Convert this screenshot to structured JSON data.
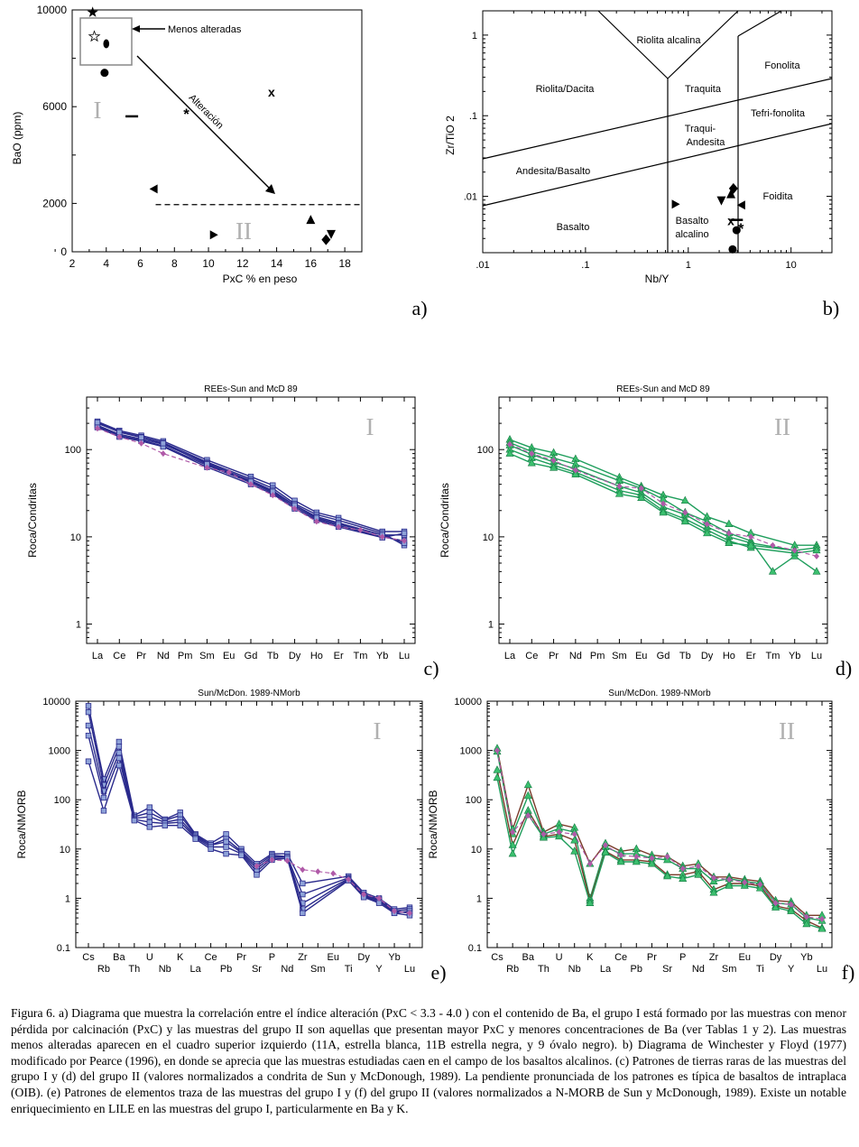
{
  "chart_data": [
    {
      "panel": "a)",
      "type": "scatter",
      "xlabel": "PxC % en peso",
      "ylabel": "BaO (ppm)",
      "xlim": [
        2,
        19
      ],
      "ylim": [
        0,
        10000
      ],
      "xticks": [
        "2",
        "4",
        "6",
        "8",
        "10",
        "12",
        "14",
        "16",
        "18"
      ],
      "yticks": [
        "0",
        "2000",
        "6000",
        "10000"
      ],
      "roman_group_I": "I",
      "roman_group_II": "II",
      "annotations": {
        "less_altered": "Menos alteradas",
        "alteration": "Alteración"
      },
      "threshold_y": 1950,
      "points": [
        {
          "x": 3.2,
          "y": 9900,
          "marker": "star"
        },
        {
          "x": 3.3,
          "y": 8900,
          "marker": "open-star"
        },
        {
          "x": 4.0,
          "y": 8600,
          "marker": "oval"
        },
        {
          "x": 3.9,
          "y": 7400,
          "marker": "circle"
        },
        {
          "x": 5.5,
          "y": 5600,
          "marker": "dash"
        },
        {
          "x": 8.7,
          "y": 5700,
          "marker": "asterisk"
        },
        {
          "x": 13.7,
          "y": 6600,
          "marker": "x"
        },
        {
          "x": 6.8,
          "y": 2600,
          "marker": "tri-left"
        },
        {
          "x": 10.3,
          "y": 700,
          "marker": "tri-right"
        },
        {
          "x": 16.0,
          "y": 1300,
          "marker": "tri-up"
        },
        {
          "x": 16.9,
          "y": 500,
          "marker": "diamond"
        },
        {
          "x": 17.2,
          "y": 750,
          "marker": "tri-down"
        }
      ]
    },
    {
      "panel": "b)",
      "type": "scatter",
      "xlabel": "Nb/Y",
      "ylabel": "Zr/TiO 2",
      "xlim": [
        0.01,
        25
      ],
      "ylim": [
        0.002,
        2
      ],
      "xticks": [
        ".01",
        ".1",
        "1",
        "10"
      ],
      "yticks": [
        ".01",
        ".1",
        "1"
      ],
      "fields": [
        "Riolita alcalina",
        "Riolita/Dacita",
        "Traquita",
        "Fonolita",
        "Tefri-fonolita",
        "Traqui-",
        "Andesita",
        "Andesita/Basalto",
        "Foidita",
        "Basalto",
        "Basalto",
        "alcalino"
      ],
      "points": [
        {
          "x": 0.75,
          "y": 0.008,
          "marker": "tri-right"
        },
        {
          "x": 2.1,
          "y": 0.009,
          "marker": "tri-down"
        },
        {
          "x": 2.6,
          "y": 0.0105,
          "marker": "tri-up"
        },
        {
          "x": 2.75,
          "y": 0.0125,
          "marker": "diamond"
        },
        {
          "x": 3.3,
          "y": 0.0078,
          "marker": "tri-left"
        },
        {
          "x": 2.6,
          "y": 0.005,
          "marker": "x"
        },
        {
          "x": 2.95,
          "y": 0.0051,
          "marker": "dash"
        },
        {
          "x": 2.95,
          "y": 0.0038,
          "marker": "circle"
        },
        {
          "x": 3.25,
          "y": 0.004,
          "marker": "asterisk"
        },
        {
          "x": 2.7,
          "y": 0.0022,
          "marker": "circle"
        }
      ]
    },
    {
      "panel": "c)",
      "type": "line",
      "title": "REEs-Sun and McD 89",
      "group": "I",
      "ylabel": "Roca/Condritas",
      "ylim": [
        0.6,
        400
      ],
      "yticks": [
        "1",
        "10",
        "100"
      ],
      "categories": [
        "La",
        "Ce",
        "Pr",
        "Nd",
        "Pm",
        "Sm",
        "Eu",
        "Gd",
        "Tb",
        "Dy",
        "Ho",
        "Er",
        "Tm",
        "Yb",
        "Lu"
      ],
      "series": [
        {
          "name": "s1",
          "values": [
            210,
            165,
            145,
            125,
            null,
            76,
            null,
            49,
            39,
            26,
            19,
            16.5,
            null,
            11.5,
            11.5
          ]
        },
        {
          "name": "s2",
          "values": [
            200,
            160,
            140,
            120,
            null,
            72,
            null,
            46,
            36,
            24,
            18,
            15.5,
            null,
            11,
            8
          ]
        },
        {
          "name": "s3",
          "values": [
            190,
            150,
            132,
            115,
            null,
            70,
            null,
            44,
            34,
            23,
            17,
            14.5,
            null,
            10.5,
            10.5
          ]
        },
        {
          "name": "s4",
          "values": [
            185,
            145,
            128,
            110,
            null,
            66,
            null,
            42,
            32,
            22,
            16,
            13.5,
            null,
            10,
            9
          ]
        },
        {
          "name": "s5",
          "values": [
            180,
            140,
            125,
            108,
            null,
            63,
            null,
            40,
            31,
            21,
            15.5,
            13,
            null,
            9.8,
            11
          ]
        },
        {
          "name": "s6",
          "values": [
            205,
            158,
            138,
            118,
            null,
            68,
            null,
            43,
            33,
            23,
            16.5,
            14,
            null,
            10.5,
            8.5
          ]
        },
        {
          "name": "reference",
          "values": [
            175,
            140,
            118,
            90,
            null,
            62,
            55,
            40,
            30,
            21,
            15,
            13,
            12,
            10,
            9
          ]
        }
      ]
    },
    {
      "panel": "d)",
      "type": "line",
      "title": "REEs-Sun and McD 89",
      "group": "II",
      "ylabel": "Roca/Condritas",
      "ylim": [
        0.6,
        400
      ],
      "yticks": [
        "1",
        "10",
        "100"
      ],
      "categories": [
        "La",
        "Ce",
        "Pr",
        "Nd",
        "Pm",
        "Sm",
        "Eu",
        "Gd",
        "Tb",
        "Dy",
        "Ho",
        "Er",
        "Tm",
        "Yb",
        "Lu"
      ],
      "series": [
        {
          "name": "s1",
          "values": [
            130,
            105,
            92,
            78,
            null,
            48,
            38,
            30,
            26,
            17,
            14,
            11,
            null,
            8,
            8
          ]
        },
        {
          "name": "s2",
          "values": [
            120,
            95,
            80,
            68,
            null,
            44,
            36,
            27,
            19,
            15,
            11,
            9,
            4,
            6,
            4
          ]
        },
        {
          "name": "s3",
          "values": [
            112,
            88,
            72,
            60,
            null,
            38,
            32,
            22,
            18,
            13,
            10,
            8.5,
            null,
            7,
            7.5
          ]
        },
        {
          "name": "s4",
          "values": [
            100,
            80,
            66,
            55,
            null,
            34,
            30,
            20,
            16,
            12,
            9,
            7.5,
            null,
            6.5,
            7
          ]
        },
        {
          "name": "s5",
          "values": [
            90,
            70,
            62,
            52,
            null,
            31,
            28,
            19,
            15,
            11,
            8.5,
            8,
            null,
            7,
            null
          ]
        },
        {
          "name": "reference",
          "values": [
            115,
            90,
            75,
            58,
            null,
            38,
            36,
            24,
            19,
            14,
            11,
            10,
            8,
            7,
            6
          ]
        }
      ]
    },
    {
      "panel": "e)",
      "type": "line",
      "title": "Sun/McDon. 1989-NMorb",
      "group": "I",
      "ylabel": "Roca/NMORB",
      "ylim": [
        0.1,
        10000
      ],
      "yticks": [
        "0.1",
        "1",
        "10",
        "100",
        "1000",
        "10000"
      ],
      "categories": [
        "Cs",
        "Rb",
        "Ba",
        "Th",
        "U",
        "Nb",
        "K",
        "La",
        "Ce",
        "Pb",
        "Pr",
        "Sr",
        "P",
        "Nd",
        "Zr",
        "Sm",
        "Eu",
        "Ti",
        "Dy",
        "Y",
        "Yb",
        "Lu"
      ],
      "labels_top": [
        "Cs",
        "Ba",
        "U",
        "K",
        "Ce",
        "Pr",
        "P",
        "Zr",
        "Eu",
        "Dy",
        "Yb"
      ],
      "labels_bottom": [
        "Rb",
        "Th",
        "Nb",
        "La",
        "Pb",
        "Sr",
        "Nd",
        "Sm",
        "Ti",
        "Y",
        "Lu"
      ],
      "series": [
        {
          "name": "s1",
          "values": [
            8000,
            260,
            1500,
            48,
            70,
            40,
            55,
            20,
            13,
            20,
            10,
            5,
            8,
            8,
            2,
            null,
            null,
            2.8,
            1.3,
            1,
            0.6,
            0.65
          ]
        },
        {
          "name": "s2",
          "values": [
            6000,
            200,
            1200,
            45,
            55,
            38,
            48,
            19,
            12,
            16,
            9,
            4.5,
            7.5,
            7,
            1.2,
            null,
            null,
            2.6,
            1.2,
            0.95,
            0.55,
            0.6
          ]
        },
        {
          "name": "s3",
          "values": [
            3200,
            150,
            900,
            42,
            45,
            35,
            40,
            18,
            12,
            14,
            8.5,
            4,
            7,
            7,
            0.8,
            null,
            null,
            2.5,
            1.15,
            0.9,
            0.5,
            0.55
          ]
        },
        {
          "name": "s4",
          "values": [
            2000,
            110,
            700,
            40,
            35,
            33,
            35,
            17,
            11,
            11,
            8,
            3.5,
            6.5,
            6.5,
            0.6,
            null,
            null,
            2.4,
            1.1,
            0.85,
            0.55,
            0.5
          ]
        },
        {
          "name": "s5",
          "values": [
            600,
            60,
            500,
            38,
            28,
            30,
            30,
            16,
            10,
            8,
            7.5,
            3,
            6,
            6.5,
            0.5,
            null,
            null,
            2.3,
            1.05,
            0.8,
            0.5,
            0.45
          ]
        },
        {
          "name": "reference",
          "values": [
            null,
            null,
            null,
            null,
            null,
            null,
            null,
            null,
            null,
            null,
            null,
            4.5,
            6,
            5.8,
            3.8,
            3.5,
            3.2,
            2.4,
            1.2,
            1,
            0.55,
            0.5
          ]
        }
      ]
    },
    {
      "panel": "f)",
      "type": "line",
      "title": "Sun/McDon. 1989-NMorb",
      "group": "II",
      "ylabel": "Roca/NMORB",
      "ylim": [
        0.1,
        10000
      ],
      "yticks": [
        "0.1",
        "1",
        "10",
        "100",
        "1000",
        "10000"
      ],
      "categories": [
        "Cs",
        "Rb",
        "Ba",
        "Th",
        "U",
        "Nb",
        "K",
        "La",
        "Ce",
        "Pb",
        "Pr",
        "Sr",
        "P",
        "Nd",
        "Zr",
        "Sm",
        "Eu",
        "Ti",
        "Dy",
        "Y",
        "Yb",
        "Lu"
      ],
      "labels_top": [
        "Cs",
        "Ba",
        "U",
        "K",
        "Ce",
        "Pr",
        "P",
        "Zr",
        "Eu",
        "Dy",
        "Yb"
      ],
      "labels_bottom": [
        "Rb",
        "Th",
        "Nb",
        "La",
        "Pb",
        "Sr",
        "Nd",
        "Sm",
        "Ti",
        "Y",
        "Lu"
      ],
      "series": [
        {
          "name": "s1",
          "values": [
            1100,
            25,
            200,
            22,
            32,
            27,
            5,
            13,
            9,
            10,
            7.5,
            7,
            4.5,
            5,
            2.7,
            2.7,
            2.4,
            2.2,
            0.9,
            0.85,
            0.45,
            0.45
          ]
        },
        {
          "name": "s2",
          "values": [
            950,
            20,
            120,
            20,
            26,
            22,
            1,
            11,
            8,
            8,
            6.5,
            6,
            4,
            4,
            2.2,
            2.5,
            2.2,
            2,
            0.8,
            0.75,
            0.4,
            0.35
          ]
        },
        {
          "name": "s3",
          "values": [
            400,
            12,
            60,
            18,
            20,
            15,
            0.9,
            9,
            6,
            6,
            5.5,
            3,
            3,
            3.5,
            1.5,
            2,
            2,
            1.8,
            0.7,
            0.6,
            0.35,
            0.25
          ]
        },
        {
          "name": "s4",
          "values": [
            280,
            8,
            50,
            17,
            18,
            9,
            0.8,
            8.5,
            5.5,
            5.5,
            5,
            2.8,
            2.5,
            3,
            1.3,
            1.8,
            1.8,
            1.6,
            0.65,
            0.55,
            0.3,
            0.24
          ]
        },
        {
          "name": "reference",
          "values": [
            1000,
            22,
            48,
            20,
            22,
            20,
            5,
            12,
            7.5,
            7,
            6.5,
            7,
            4,
            4.5,
            2.6,
            2.4,
            2.1,
            1.9,
            0.8,
            0.75,
            0.42,
            0.38
          ]
        }
      ]
    }
  ],
  "panel_labels": {
    "a": "a)",
    "b": "b)",
    "c": "c)",
    "d": "d)",
    "e": "e)",
    "f": "f)"
  },
  "colors": {
    "group_I_line": "#2a2a8c",
    "group_I_marker": "#8ea2d8",
    "group_II_green": "#1f9e5c",
    "group_II_brown": "#7a3b2a",
    "reference": "#b05aa8",
    "roman": "#b0b0b0"
  },
  "caption": "Figura 6. a) Diagrama que muestra la correlación entre el índice alteración (PxC < 3.3 - 4.0 ) con el contenido de Ba, el grupo I está formado por las muestras con menor pérdida por calcinación (PxC) y las muestras del grupo II son aquellas que presentan mayor PxC y menores concentraciones de Ba (ver Tablas 1 y 2). Las muestras menos alteradas aparecen en el cuadro superior izquierdo (11A, estrella blanca, 11B estrella negra, y 9 óvalo negro). b) Diagrama de Winchester y Floyd (1977) modificado por Pearce (1996), en donde se aprecia que las muestras estudiadas caen en el campo de los basaltos alcalinos. (c) Patrones de tierras raras de las muestras del grupo I y (d) del grupo II (valores normalizados a condrita de Sun y McDonough, 1989). La pendiente pronunciada de los patrones es típica de basaltos de intraplaca (OIB). (e) Patrones de elementos traza de las muestras del grupo I y (f) del grupo II (valores normalizados a N-MORB de Sun y McDonough, 1989). Existe un notable enriquecimiento en LILE en las muestras del grupo I, particularmente en Ba y K."
}
